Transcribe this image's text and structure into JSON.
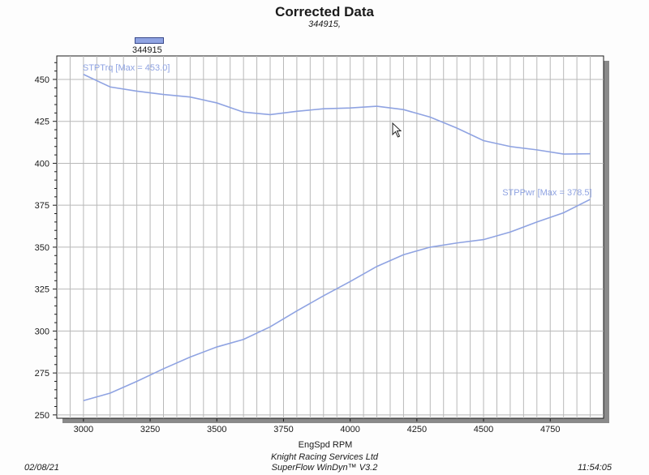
{
  "header": {
    "title": "Corrected Data",
    "subtitle": "344915,"
  },
  "legend": {
    "label": "344915",
    "color": "#8fa3e2"
  },
  "footer": {
    "date": "02/08/21",
    "company": "Knight Racing Services Ltd",
    "software": "SuperFlow WinDyn™ V3.2",
    "time": "11:54:05"
  },
  "chart_data": {
    "type": "line",
    "xlabel": "EngSpd RPM",
    "ylabel": "",
    "xlim": [
      2900,
      4950
    ],
    "ylim": [
      248,
      464
    ],
    "x_ticks": [
      3000,
      3250,
      3500,
      3750,
      4000,
      4250,
      4500,
      4750
    ],
    "y_ticks": [
      250,
      275,
      300,
      325,
      350,
      375,
      400,
      425,
      450
    ],
    "grid": true,
    "line_color": "#8fa3e2",
    "x": [
      3000,
      3100,
      3200,
      3300,
      3400,
      3500,
      3600,
      3700,
      3800,
      3900,
      4000,
      4100,
      4200,
      4300,
      4400,
      4500,
      4600,
      4700,
      4800,
      4900
    ],
    "series": [
      {
        "name": "STPTrq",
        "annotation": "STPTrq [Max = 453.0]",
        "values": [
          453.0,
          445.5,
          443,
          441,
          439.5,
          436,
          430.5,
          429,
          431,
          432.5,
          433,
          434,
          432,
          427.5,
          421,
          413.5,
          410,
          408,
          405.5,
          405.7
        ]
      },
      {
        "name": "STPPwr",
        "annotation": "STPPwr [Max = 378.5]",
        "values": [
          258.5,
          263,
          270,
          277.5,
          284.5,
          290.5,
          295,
          302.5,
          312,
          321,
          329.5,
          338.5,
          345.5,
          350,
          352.5,
          354.5,
          359,
          365,
          370.5,
          378.5
        ]
      }
    ]
  }
}
